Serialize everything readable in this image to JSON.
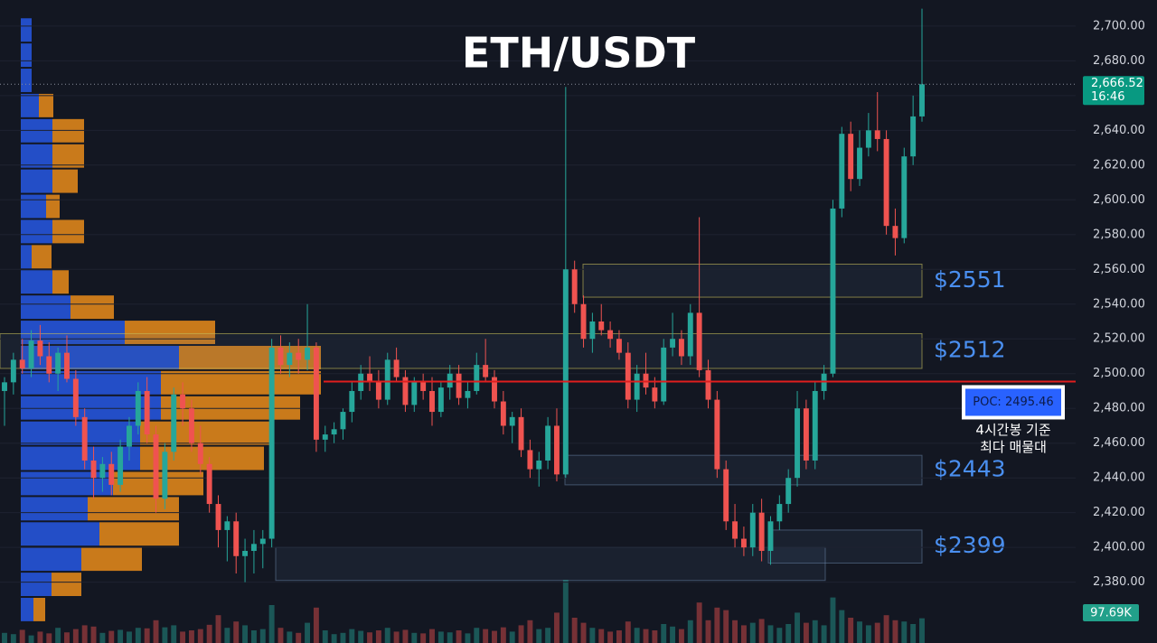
{
  "chart_data": {
    "type": "candlestick",
    "title": "ETH/USDT",
    "ylim": [
      2345,
      2715
    ],
    "yticks": [
      {
        "value": 2380,
        "label": "2,380.00"
      },
      {
        "value": 2400,
        "label": "2,400.00"
      },
      {
        "value": 2420,
        "label": "2,420.00"
      },
      {
        "value": 2440,
        "label": "2,440.00"
      },
      {
        "value": 2460,
        "label": "2,460.00"
      },
      {
        "value": 2480,
        "label": "2,480.00"
      },
      {
        "value": 2500,
        "label": "2,500.00"
      },
      {
        "value": 2520,
        "label": "2,520.00"
      },
      {
        "value": 2540,
        "label": "2,540.00"
      },
      {
        "value": 2560,
        "label": "2,560.00"
      },
      {
        "value": 2580,
        "label": "2,580.00"
      },
      {
        "value": 2600,
        "label": "2,600.00"
      },
      {
        "value": 2620,
        "label": "2,620.00"
      },
      {
        "value": 2640,
        "label": "2,640.00"
      },
      {
        "value": 2660,
        "label": "2,660.00"
      },
      {
        "value": 2680,
        "label": "2,680.00"
      },
      {
        "value": 2700,
        "label": "2,700.00"
      }
    ],
    "up_color": "#26a69a",
    "down_color": "#ef5350",
    "candles": [
      [
        2490,
        2498,
        2470,
        2495
      ],
      [
        2495,
        2512,
        2488,
        2508
      ],
      [
        2508,
        2520,
        2500,
        2503
      ],
      [
        2503,
        2525,
        2498,
        2519
      ],
      [
        2519,
        2528,
        2505,
        2510
      ],
      [
        2510,
        2518,
        2495,
        2500
      ],
      [
        2500,
        2515,
        2490,
        2512
      ],
      [
        2512,
        2522,
        2495,
        2497
      ],
      [
        2497,
        2502,
        2470,
        2475
      ],
      [
        2475,
        2480,
        2445,
        2450
      ],
      [
        2450,
        2458,
        2428,
        2440
      ],
      [
        2440,
        2452,
        2432,
        2448
      ],
      [
        2448,
        2455,
        2430,
        2436
      ],
      [
        2436,
        2462,
        2432,
        2458
      ],
      [
        2458,
        2475,
        2450,
        2470
      ],
      [
        2470,
        2495,
        2465,
        2490
      ],
      [
        2490,
        2498,
        2460,
        2465
      ],
      [
        2465,
        2470,
        2420,
        2428
      ],
      [
        2428,
        2460,
        2422,
        2455
      ],
      [
        2455,
        2492,
        2450,
        2488
      ],
      [
        2488,
        2495,
        2470,
        2480
      ],
      [
        2480,
        2485,
        2455,
        2460
      ],
      [
        2460,
        2470,
        2442,
        2448
      ],
      [
        2448,
        2452,
        2420,
        2425
      ],
      [
        2425,
        2430,
        2400,
        2410
      ],
      [
        2410,
        2418,
        2392,
        2415
      ],
      [
        2415,
        2420,
        2385,
        2395
      ],
      [
        2395,
        2405,
        2380,
        2398
      ],
      [
        2398,
        2410,
        2385,
        2402
      ],
      [
        2402,
        2410,
        2388,
        2405
      ],
      [
        2405,
        2520,
        2400,
        2515
      ],
      [
        2515,
        2522,
        2500,
        2505
      ],
      [
        2505,
        2518,
        2498,
        2512
      ],
      [
        2512,
        2520,
        2500,
        2508
      ],
      [
        2508,
        2540,
        2502,
        2515
      ],
      [
        2515,
        2518,
        2455,
        2462
      ],
      [
        2462,
        2470,
        2455,
        2465
      ],
      [
        2465,
        2472,
        2460,
        2468
      ],
      [
        2468,
        2480,
        2462,
        2478
      ],
      [
        2478,
        2495,
        2472,
        2490
      ],
      [
        2490,
        2505,
        2485,
        2500
      ],
      [
        2500,
        2510,
        2490,
        2495
      ],
      [
        2495,
        2502,
        2480,
        2485
      ],
      [
        2485,
        2512,
        2482,
        2508
      ],
      [
        2508,
        2515,
        2495,
        2498
      ],
      [
        2498,
        2502,
        2478,
        2482
      ],
      [
        2482,
        2498,
        2478,
        2495
      ],
      [
        2495,
        2500,
        2485,
        2490
      ],
      [
        2490,
        2498,
        2470,
        2478
      ],
      [
        2478,
        2495,
        2475,
        2492
      ],
      [
        2492,
        2505,
        2485,
        2500
      ],
      [
        2500,
        2505,
        2482,
        2486
      ],
      [
        2486,
        2495,
        2480,
        2490
      ],
      [
        2490,
        2512,
        2488,
        2505
      ],
      [
        2505,
        2520,
        2495,
        2498
      ],
      [
        2498,
        2502,
        2480,
        2484
      ],
      [
        2484,
        2490,
        2465,
        2470
      ],
      [
        2470,
        2478,
        2460,
        2475
      ],
      [
        2475,
        2480,
        2452,
        2456
      ],
      [
        2456,
        2462,
        2440,
        2445
      ],
      [
        2445,
        2455,
        2435,
        2450
      ],
      [
        2450,
        2475,
        2445,
        2470
      ],
      [
        2470,
        2480,
        2438,
        2442
      ],
      [
        2442,
        2665,
        2440,
        2560
      ],
      [
        2560,
        2565,
        2535,
        2540
      ],
      [
        2540,
        2545,
        2515,
        2520
      ],
      [
        2520,
        2535,
        2512,
        2530
      ],
      [
        2530,
        2540,
        2522,
        2525
      ],
      [
        2525,
        2530,
        2515,
        2520
      ],
      [
        2520,
        2525,
        2508,
        2512
      ],
      [
        2512,
        2518,
        2480,
        2485
      ],
      [
        2485,
        2505,
        2478,
        2500
      ],
      [
        2500,
        2512,
        2488,
        2492
      ],
      [
        2492,
        2498,
        2480,
        2484
      ],
      [
        2484,
        2520,
        2482,
        2515
      ],
      [
        2515,
        2535,
        2510,
        2520
      ],
      [
        2520,
        2525,
        2505,
        2510
      ],
      [
        2510,
        2540,
        2505,
        2535
      ],
      [
        2535,
        2590,
        2498,
        2502
      ],
      [
        2502,
        2508,
        2480,
        2485
      ],
      [
        2485,
        2490,
        2440,
        2445
      ],
      [
        2445,
        2450,
        2410,
        2415
      ],
      [
        2415,
        2425,
        2400,
        2405
      ],
      [
        2405,
        2412,
        2395,
        2400
      ],
      [
        2400,
        2425,
        2395,
        2420
      ],
      [
        2420,
        2428,
        2392,
        2398
      ],
      [
        2398,
        2418,
        2390,
        2415
      ],
      [
        2415,
        2430,
        2410,
        2425
      ],
      [
        2425,
        2445,
        2420,
        2440
      ],
      [
        2440,
        2490,
        2435,
        2480
      ],
      [
        2480,
        2485,
        2445,
        2450
      ],
      [
        2450,
        2495,
        2445,
        2490
      ],
      [
        2490,
        2505,
        2485,
        2500
      ],
      [
        2500,
        2600,
        2498,
        2595
      ],
      [
        2595,
        2642,
        2590,
        2638
      ],
      [
        2638,
        2645,
        2605,
        2612
      ],
      [
        2612,
        2640,
        2608,
        2630
      ],
      [
        2630,
        2650,
        2625,
        2640
      ],
      [
        2640,
        2662,
        2628,
        2635
      ],
      [
        2635,
        2640,
        2580,
        2585
      ],
      [
        2585,
        2595,
        2568,
        2578
      ],
      [
        2578,
        2630,
        2575,
        2625
      ],
      [
        2625,
        2660,
        2620,
        2648
      ],
      [
        2648,
        2710,
        2645,
        2666.52
      ]
    ],
    "volumes": [
      40000,
      35000,
      52000,
      30000,
      45000,
      38000,
      60000,
      42000,
      55000,
      70000,
      65000,
      40000,
      48000,
      52000,
      45000,
      60000,
      58000,
      90000,
      62000,
      70000,
      45000,
      50000,
      55000,
      72000,
      110000,
      60000,
      85000,
      70000,
      50000,
      55000,
      150000,
      60000,
      45000,
      40000,
      80000,
      140000,
      50000,
      35000,
      40000,
      55000,
      48000,
      42000,
      50000,
      60000,
      45000,
      52000,
      40000,
      38000,
      55000,
      45000,
      42000,
      50000,
      38000,
      60000,
      55000,
      48000,
      62000,
      45000,
      70000,
      90000,
      55000,
      60000,
      120000,
      250000,
      100000,
      80000,
      60000,
      55000,
      45000,
      50000,
      85000,
      60000,
      55000,
      50000,
      75000,
      65000,
      55000,
      90000,
      160000,
      90000,
      140000,
      130000,
      90000,
      70000,
      80000,
      95000,
      70000,
      60000,
      75000,
      120000,
      80000,
      90000,
      70000,
      180000,
      130000,
      100000,
      85000,
      70000,
      80000,
      110000,
      90000,
      85000,
      75000,
      97690
    ],
    "last_price": {
      "value": 2666.52,
      "label": "2,666.52"
    },
    "last_time": "16:46",
    "last_volume_label": "97.69K",
    "poc": {
      "value": 2495.46,
      "label": "POC: 2495.46"
    },
    "poc_note": [
      "4시간봉 기준",
      "최다 매물대"
    ],
    "zones": [
      {
        "label": "$2551",
        "top": 2563,
        "bottom": 2544
      },
      {
        "label": "$2512",
        "top": 2523,
        "bottom": 2503
      },
      {
        "label": "$2443",
        "top": 2453,
        "bottom": 2436
      },
      {
        "label": "$2399",
        "top": 2410,
        "bottom": 2391
      },
      {
        "top": 2400,
        "bottom": 2381
      }
    ],
    "profile": {
      "bins": [
        2357,
        2371.5,
        2386,
        2400.5,
        2415,
        2429.5,
        2444,
        2458.5,
        2473,
        2487.5,
        2502,
        2516.5,
        2531,
        2545.5,
        2560,
        2574.5,
        2589,
        2603.5,
        2618,
        2632.5,
        2647,
        2661.5,
        2676,
        2690.5,
        2705
      ],
      "buy": [
        14,
        34,
        67,
        87,
        74,
        102,
        132,
        132,
        155,
        155,
        175,
        115,
        55,
        35,
        12,
        35,
        28,
        35,
        35,
        35,
        20,
        12,
        12,
        12
      ],
      "sell": [
        13,
        33,
        67,
        88,
        101,
        100,
        137,
        143,
        154,
        177,
        157,
        100,
        48,
        18,
        22,
        35,
        15,
        28,
        35,
        35,
        16,
        0,
        0,
        0
      ],
      "buy_color": "#2962ff",
      "sell_color": "#f7931a"
    }
  }
}
